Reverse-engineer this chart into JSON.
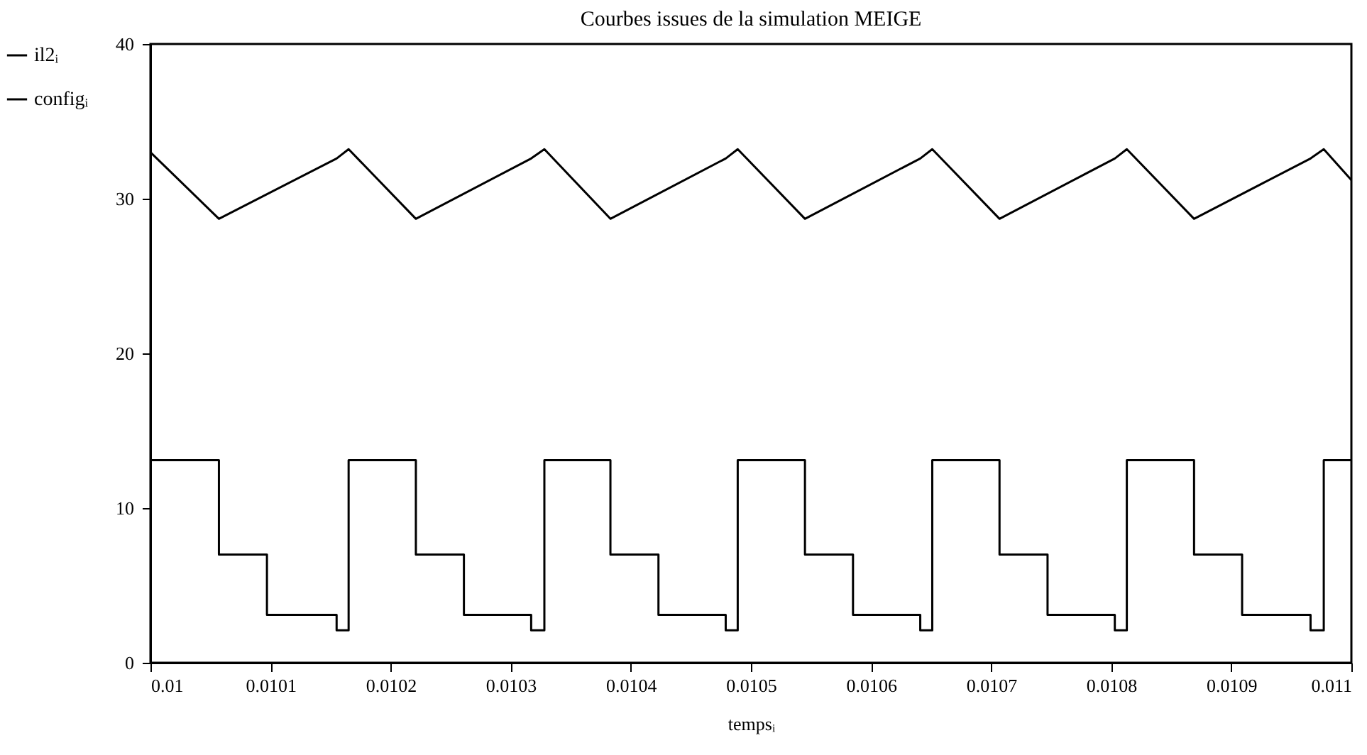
{
  "chart_data": {
    "type": "line",
    "title": "Courbes issues de la simulation MEIGE",
    "xlabel": "tempsᵢ",
    "xlim": [
      0.01,
      0.011
    ],
    "xticks": [
      0.01,
      0.0101,
      0.0102,
      0.0103,
      0.0104,
      0.0105,
      0.0106,
      0.0107,
      0.0108,
      0.0109,
      0.011
    ],
    "ylim": [
      0,
      40
    ],
    "yticks": [
      0,
      10,
      20,
      30,
      40
    ],
    "legend": "left",
    "series": [
      {
        "name": "il2ᵢ",
        "color": "#000000",
        "type": "line",
        "x": [
          0.01,
          0.010057,
          0.010155,
          0.010165,
          0.010221,
          0.010317,
          0.010328,
          0.010383,
          0.010479,
          0.010489,
          0.010545,
          0.010641,
          0.010651,
          0.010707,
          0.010803,
          0.010813,
          0.010869,
          0.010966,
          0.010977,
          0.011
        ],
        "values": [
          33.0,
          28.7,
          32.6,
          33.2,
          28.7,
          32.6,
          33.2,
          28.7,
          32.6,
          33.2,
          28.7,
          32.6,
          33.2,
          28.7,
          32.6,
          33.2,
          28.7,
          32.6,
          33.2,
          31.2
        ]
      },
      {
        "name": "configᵢ",
        "color": "#000000",
        "type": "step",
        "x": [
          0.01,
          0.010057,
          0.010097,
          0.010155,
          0.010165,
          0.010221,
          0.010261,
          0.010317,
          0.010328,
          0.010383,
          0.010423,
          0.010479,
          0.010489,
          0.010545,
          0.010585,
          0.010641,
          0.010651,
          0.010707,
          0.010747,
          0.010803,
          0.010813,
          0.010869,
          0.010909,
          0.010966,
          0.010977,
          0.011
        ],
        "values": [
          13.1,
          7.0,
          3.1,
          2.1,
          13.1,
          7.0,
          3.1,
          2.1,
          13.1,
          7.0,
          3.1,
          2.1,
          13.1,
          7.0,
          3.1,
          2.1,
          13.1,
          7.0,
          3.1,
          2.1,
          13.1,
          7.0,
          3.1,
          2.1,
          13.1,
          13.1
        ]
      }
    ]
  }
}
